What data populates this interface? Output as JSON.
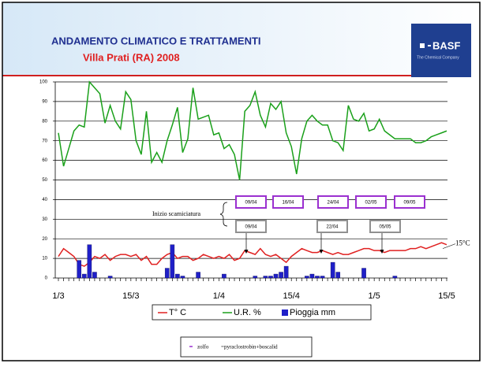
{
  "logo": {
    "name": "BASF",
    "tagline": "The Chemical Company"
  },
  "chart_data": {
    "type": "line",
    "title": "ANDAMENTO CLIMATICO E TRATTAMENTI",
    "subtitle": "Villa Prati (RA) 2008",
    "categories": [
      "1/3",
      null,
      null,
      null,
      null,
      null,
      null,
      null,
      null,
      null,
      null,
      null,
      null,
      null,
      "15/3",
      null,
      null,
      null,
      null,
      null,
      null,
      null,
      null,
      null,
      null,
      null,
      null,
      null,
      null,
      null,
      null,
      "1/4",
      null,
      null,
      null,
      null,
      null,
      null,
      null,
      null,
      null,
      null,
      null,
      null,
      null,
      "15/4",
      null,
      null,
      null,
      null,
      null,
      null,
      null,
      null,
      null,
      null,
      null,
      null,
      null,
      null,
      null,
      "1/5",
      null,
      null,
      null,
      null,
      null,
      null,
      null,
      null,
      null,
      null,
      null,
      null,
      null,
      "15/5"
    ],
    "ylim": [
      0,
      100
    ],
    "yticks": [
      0,
      10,
      20,
      30,
      40,
      50,
      60,
      70,
      80,
      90,
      100
    ],
    "grid": true,
    "series": [
      {
        "name": "T° C",
        "type": "line",
        "color": "#e02020",
        "values": [
          11,
          15,
          13,
          11,
          7,
          6,
          8,
          11,
          10,
          12,
          9,
          11,
          12,
          12,
          11,
          12,
          9,
          11,
          7,
          7,
          10,
          12,
          13,
          10,
          11,
          11,
          9,
          10,
          12,
          11,
          10,
          11,
          10,
          12,
          9,
          10,
          14,
          13,
          12,
          15,
          12,
          11,
          12,
          10,
          8,
          11,
          13,
          15,
          14,
          13,
          13,
          14,
          13,
          12,
          13,
          12,
          12,
          13,
          14,
          15,
          15,
          14,
          14,
          13,
          14,
          14,
          14,
          14,
          15,
          15,
          16,
          15,
          16,
          17,
          18,
          17
        ]
      },
      {
        "name": "U.R. %",
        "type": "line",
        "color": "#1aa01a",
        "values": [
          74,
          57,
          66,
          75,
          78,
          77,
          100,
          97,
          94,
          79,
          88,
          80,
          76,
          95,
          91,
          70,
          63,
          85,
          59,
          64,
          59,
          70,
          78,
          87,
          64,
          71,
          97,
          81,
          82,
          83,
          73,
          74,
          66,
          68,
          63,
          50,
          85,
          88,
          95,
          83,
          77,
          89,
          86,
          90,
          74,
          67,
          53,
          71,
          80,
          83,
          80,
          78,
          78,
          70,
          69,
          65,
          88,
          81,
          80,
          84,
          75,
          76,
          81,
          75,
          73,
          71,
          71,
          71,
          71,
          69,
          69,
          70,
          72,
          73,
          74,
          75
        ]
      },
      {
        "name": "Pioggia mm",
        "type": "bar",
        "color": "#1f1fc8",
        "values": [
          0,
          0,
          0,
          0,
          9,
          2,
          17,
          3,
          0,
          0,
          1,
          0,
          0,
          0,
          0,
          0,
          0,
          0,
          0,
          0,
          0,
          5,
          17,
          2,
          1,
          0,
          0,
          3,
          0,
          0,
          0,
          0,
          2,
          0,
          0,
          0,
          0,
          0,
          1,
          0,
          1,
          1,
          2,
          3,
          6,
          0,
          0,
          0,
          1,
          2,
          1,
          1,
          0,
          8,
          3,
          0,
          0,
          0,
          0,
          5,
          0,
          0,
          0,
          0,
          0,
          1,
          0,
          0,
          0,
          0,
          0,
          0,
          0,
          0,
          0,
          0
        ]
      }
    ],
    "reference_line": {
      "value": 15,
      "label": "15°C"
    },
    "annotations": {
      "stage": "Inizio scamiciatura",
      "zolfo_dates": [
        "09/04",
        "16/04",
        "24/04",
        "02/05",
        "09/05"
      ],
      "zolfo_color": "#9b30d0",
      "pyraclostrobin_dates": [
        "09/04",
        "22/04",
        "05/05"
      ],
      "pyraclostrobin_color": "#909090"
    },
    "treatment_legend": [
      "zolfo",
      "=pyraclostrobin+boscalid"
    ]
  }
}
